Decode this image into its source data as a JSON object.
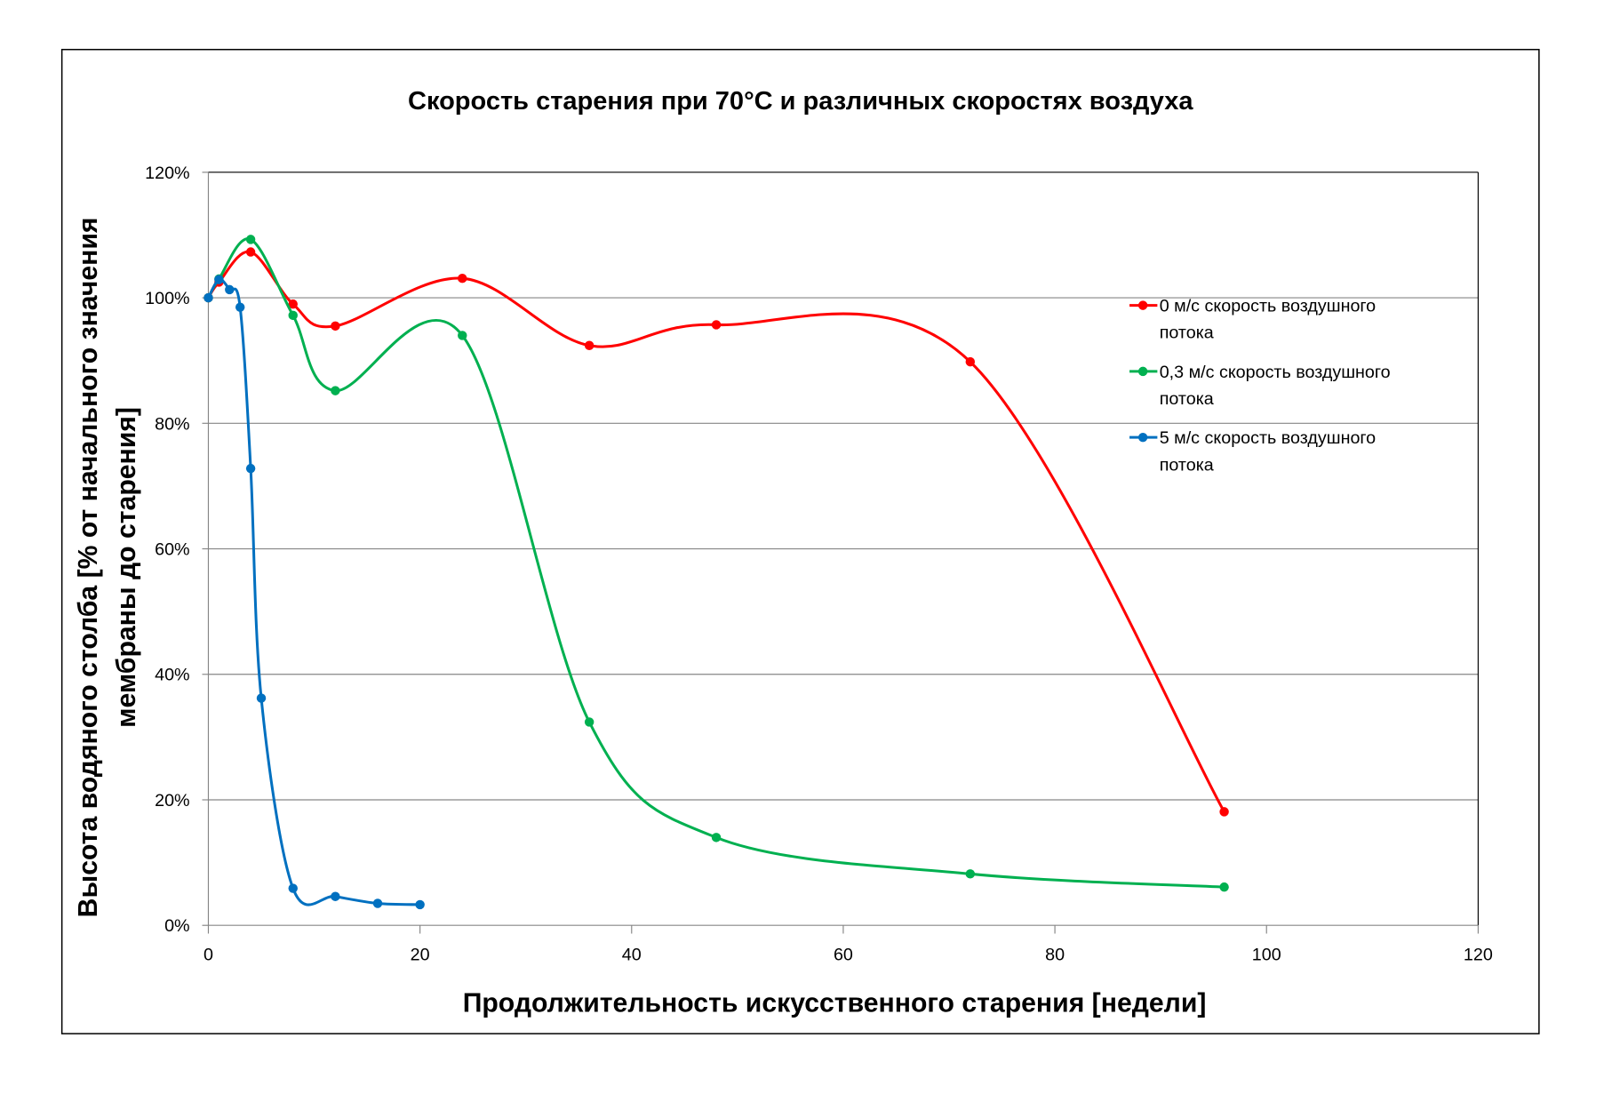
{
  "chart_data": {
    "type": "line",
    "title": "Скорость старения при 70°C и различных скоростях воздуха",
    "xlabel": "Продолжительность искусственного старения [недели]",
    "ylabel_lines": [
      "Высота водяного столба [% от начального значения",
      "мембраны до старения]"
    ],
    "xlim": [
      0,
      120
    ],
    "ylim": [
      0,
      120
    ],
    "x_ticks": [
      0,
      20,
      40,
      60,
      80,
      100,
      120
    ],
    "x_tick_labels": [
      "0",
      "20",
      "40",
      "60",
      "80",
      "100",
      "120"
    ],
    "y_ticks": [
      0,
      20,
      40,
      60,
      80,
      100,
      120
    ],
    "y_tick_labels": [
      "0%",
      "20%",
      "40%",
      "60%",
      "80%",
      "100%",
      "120%"
    ],
    "grid": "horizontal",
    "legend_position": "right",
    "smoothed": true,
    "series": [
      {
        "name_lines": [
          "0 м/с скорость воздушного",
          "потока"
        ],
        "color": "#ff0000",
        "x": [
          0,
          1,
          4,
          8,
          12,
          24,
          36,
          48,
          72,
          96
        ],
        "y": [
          100,
          102.5,
          107.3,
          99.0,
          95.5,
          103.1,
          92.4,
          95.7,
          89.8,
          18.1
        ]
      },
      {
        "name_lines": [
          "0,3 м/с скорость воздушного",
          "потока"
        ],
        "color": "#00b050",
        "x": [
          0,
          1,
          4,
          8,
          12,
          24,
          36,
          48,
          72,
          96
        ],
        "y": [
          100,
          103,
          109.3,
          97.2,
          85.2,
          94.0,
          32.4,
          14.0,
          8.2,
          6.1
        ]
      },
      {
        "name_lines": [
          "5 м/с скорость воздушного",
          "потока"
        ],
        "color": "#0070c0",
        "x": [
          0,
          1,
          2,
          3,
          4,
          5,
          8,
          12,
          16,
          20
        ],
        "y": [
          100,
          102.9,
          101.3,
          98.5,
          72.8,
          36.2,
          5.9,
          4.6,
          3.5,
          3.3
        ]
      }
    ]
  }
}
